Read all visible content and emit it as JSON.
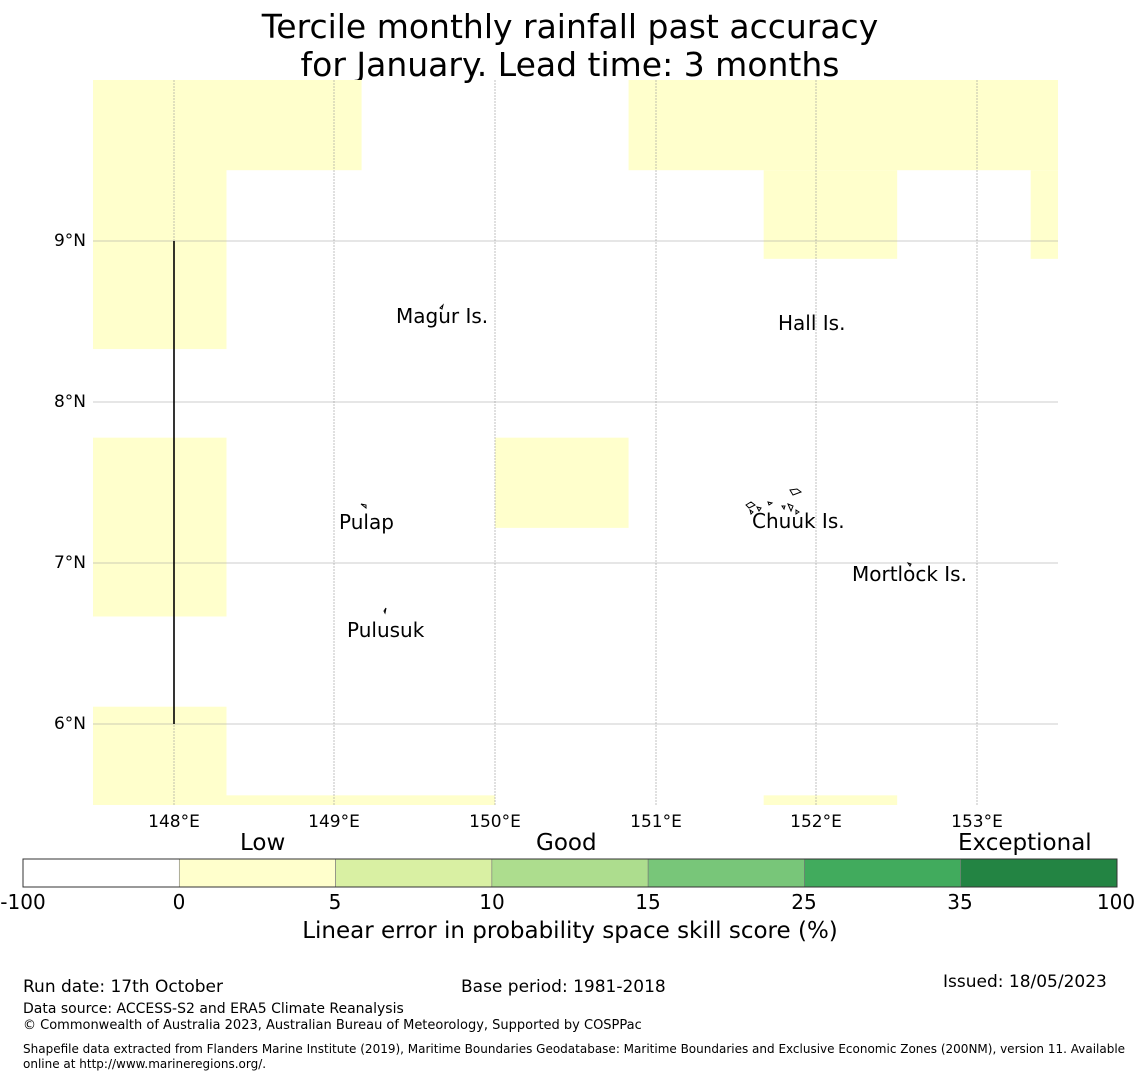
{
  "title": {
    "line1": "Tercile monthly rainfall past accuracy",
    "line2": "for January. Lead time: 3 months"
  },
  "map": {
    "lon_range": [
      147.5,
      153.5
    ],
    "lat_range": [
      5.5,
      10.0
    ],
    "lat_labels": [
      "9°N",
      "8°N",
      "7°N",
      "6°N"
    ],
    "lon_labels": [
      "148°E",
      "149°E",
      "150°E",
      "151°E",
      "152°E",
      "153°E"
    ],
    "places": [
      "Magur Is.",
      "Hall Is.",
      "Pulap",
      "Chuuk Is.",
      "Mortlock Is.",
      "Pulusuk"
    ],
    "skill_category_color": "#ffffcc",
    "skill_cells_deg": [
      {
        "lon": [
          147.5,
          148.33
        ],
        "lat": [
          8.33,
          10.0
        ]
      },
      {
        "lon": [
          148.33,
          149.17
        ],
        "lat": [
          9.44,
          10.0
        ]
      },
      {
        "lon": [
          150.83,
          153.5
        ],
        "lat": [
          9.44,
          10.0
        ]
      },
      {
        "lon": [
          151.67,
          152.5
        ],
        "lat": [
          8.89,
          9.44
        ]
      },
      {
        "lon": [
          153.33,
          153.5
        ],
        "lat": [
          8.89,
          9.44
        ]
      },
      {
        "lon": [
          147.5,
          148.33
        ],
        "lat": [
          6.67,
          7.78
        ]
      },
      {
        "lon": [
          150.0,
          150.83
        ],
        "lat": [
          7.22,
          7.78
        ]
      },
      {
        "lon": [
          147.5,
          148.33
        ],
        "lat": [
          5.5,
          6.11
        ]
      },
      {
        "lon": [
          148.33,
          150.0
        ],
        "lat": [
          5.5,
          5.56
        ]
      },
      {
        "lon": [
          151.67,
          152.5
        ],
        "lat": [
          5.5,
          5.56
        ]
      }
    ],
    "boundary_line_deg": {
      "lon": 148.0,
      "lat": [
        6.0,
        9.0
      ]
    }
  },
  "colorbar": {
    "categories": [
      "Low",
      "Good",
      "Exceptional"
    ],
    "ticks": [
      "-100",
      "0",
      "5",
      "10",
      "15",
      "25",
      "35",
      "100"
    ],
    "colors": [
      "#ffffff",
      "#ffffcc",
      "#d9f0a3",
      "#addd8e",
      "#78c679",
      "#41ab5d",
      "#238443"
    ],
    "label": "Linear error in probability space skill score (%)"
  },
  "footer": {
    "run_date": "Run date: 17th October",
    "base_period": "Base period: 1981-2018",
    "issued": "Issued: 18/05/2023",
    "data_source": "Data source: ACCESS-S2 and ERA5 Climate Reanalysis",
    "copyright": "© Commonwealth of Australia 2023, Australian Bureau of Meteorology, Supported by COSPPac",
    "shapefile_1": "Shapefile data extracted from Flanders Marine Institute (2019), Maritime Boundaries Geodatabase: Maritime Boundaries and Exclusive Economic Zones (200NM), version 11. Available",
    "shapefile_2": "online at http://www.marineregions.org/."
  }
}
